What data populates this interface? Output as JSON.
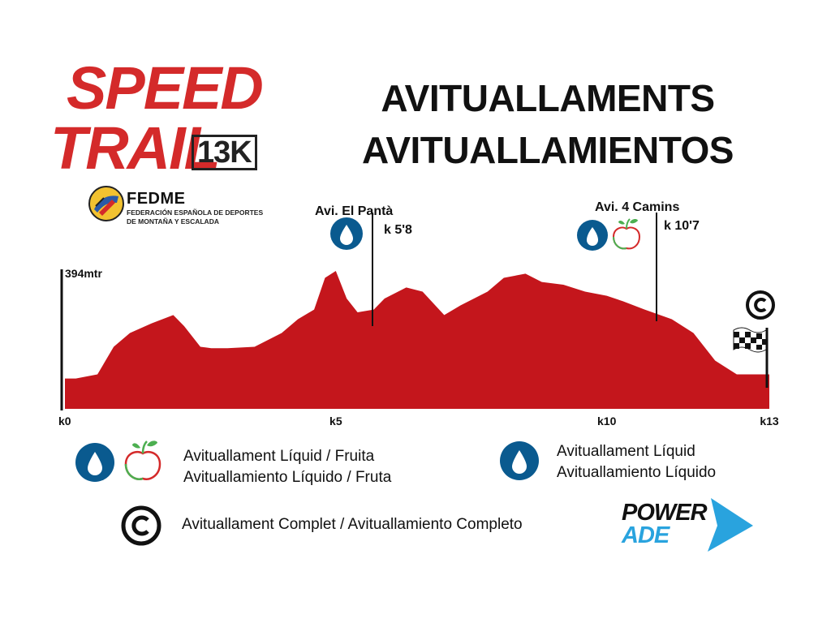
{
  "logo": {
    "line1": "SPEED",
    "line2": "TRAIL",
    "distance": "13K"
  },
  "federation": {
    "name": "FEDME",
    "subtitle_line1": "FEDERACIÓN ESPAÑOLA DE DEPORTES",
    "subtitle_line2": "DE MONTAÑA Y ESCALADA"
  },
  "title": {
    "catalan": "AVITUALLAMENTS",
    "spanish": "AVITUALLAMIENTOS"
  },
  "colors": {
    "profile": "#c4161c",
    "water_blue": "#0a5a8f",
    "apple_red": "#d42a2a",
    "apple_green": "#4caf50"
  },
  "chart_data": {
    "type": "area",
    "max_label": "394mtr",
    "x_ticks": [
      "k0",
      "k5",
      "k10",
      "k13"
    ],
    "x_tick_values": [
      0,
      5,
      10,
      13
    ],
    "xlim": [
      0,
      13
    ],
    "profile_km": [
      0,
      0.2,
      0.6,
      0.9,
      1.2,
      1.6,
      2.0,
      2.2,
      2.5,
      2.7,
      3.0,
      3.5,
      4.0,
      4.3,
      4.6,
      4.8,
      5.0,
      5.2,
      5.4,
      5.7,
      5.9,
      6.3,
      6.6,
      7.0,
      7.3,
      7.8,
      8.1,
      8.5,
      8.8,
      9.2,
      9.6,
      10.0,
      10.3,
      10.7,
      11.2,
      11.6,
      12.0,
      12.4,
      12.7,
      13.0
    ],
    "profile_elev": [
      0.22,
      0.22,
      0.25,
      0.45,
      0.55,
      0.62,
      0.68,
      0.6,
      0.45,
      0.44,
      0.44,
      0.45,
      0.55,
      0.65,
      0.72,
      0.95,
      1.0,
      0.8,
      0.7,
      0.72,
      0.8,
      0.88,
      0.85,
      0.68,
      0.75,
      0.85,
      0.95,
      0.98,
      0.92,
      0.9,
      0.85,
      0.82,
      0.78,
      0.72,
      0.65,
      0.55,
      0.35,
      0.25,
      0.25,
      0.25
    ],
    "stations": [
      {
        "name": "Avi. El Pantà",
        "km_label": "k 5'8",
        "km": 5.8,
        "type": "liquid"
      },
      {
        "name": "Avi. 4 Camins",
        "km_label": "k 10'7",
        "km": 10.7,
        "type": "liquid-fruit"
      }
    ],
    "finish": {
      "km": 13,
      "type": "complete"
    }
  },
  "legend": {
    "liquid_fruit_ca": "Avituallament Líquid / Fruita",
    "liquid_fruit_es": "Avituallamiento Líquido / Fruta",
    "liquid_ca": "Avituallament Líquid",
    "liquid_es": "Avituallamiento Líquido",
    "complete": "Avituallament Complet / Avituallamiento Completo"
  },
  "sponsor": {
    "line1": "POWER",
    "line2": "ADE"
  }
}
